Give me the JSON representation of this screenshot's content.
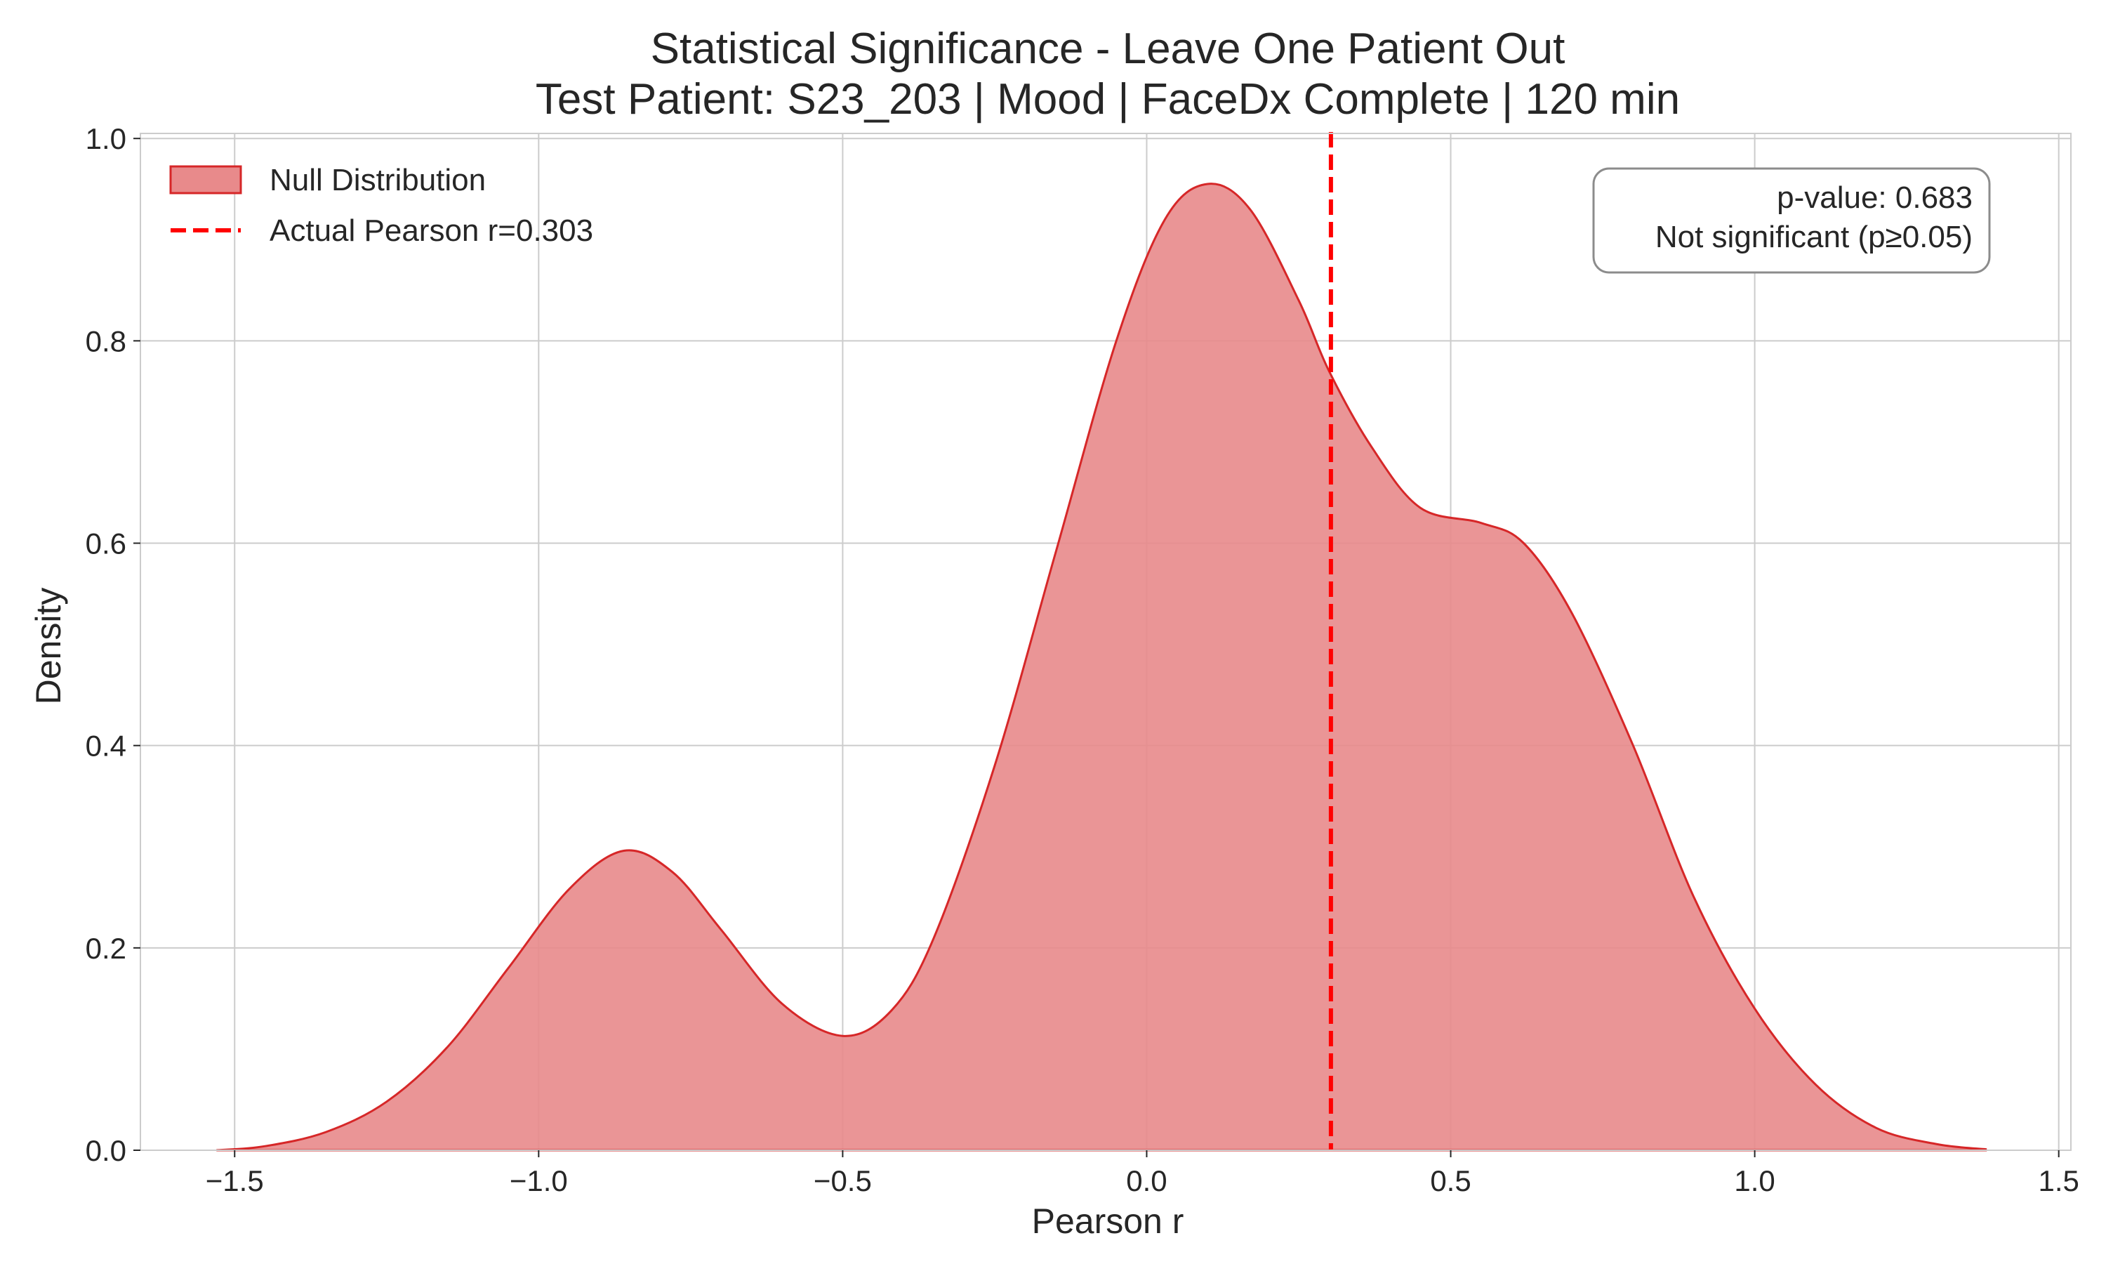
{
  "chart_data": {
    "type": "area",
    "title": "Statistical Significance - Leave One Patient Out",
    "subtitle": "Test Patient: S23_203 | Mood | FaceDx Complete | 120 min",
    "xlabel": "Pearson r",
    "ylabel": "Density",
    "xlim": [
      -1.655,
      1.52
    ],
    "ylim": [
      0.0,
      1.005
    ],
    "x_ticks": [
      -1.5,
      -1.0,
      -0.5,
      0.0,
      0.5,
      1.0,
      1.5
    ],
    "x_tick_labels": [
      "−1.5",
      "−1.0",
      "−0.5",
      "0.0",
      "0.5",
      "1.0",
      "1.5"
    ],
    "y_ticks": [
      0.0,
      0.2,
      0.4,
      0.6,
      0.8,
      1.0
    ],
    "y_tick_labels": [
      "0.0",
      "0.2",
      "0.4",
      "0.6",
      "0.8",
      "1.0"
    ],
    "grid": true,
    "legend_position": "top-left",
    "series": [
      {
        "name": "Null Distribution",
        "kind": "kde-fill",
        "fill_color": "#e88a8b",
        "edge_color": "#d62728",
        "points": [
          [
            -1.53,
            0.0
          ],
          [
            -1.45,
            0.004
          ],
          [
            -1.35,
            0.018
          ],
          [
            -1.25,
            0.048
          ],
          [
            -1.15,
            0.102
          ],
          [
            -1.05,
            0.18
          ],
          [
            -0.95,
            0.258
          ],
          [
            -0.86,
            0.296
          ],
          [
            -0.78,
            0.275
          ],
          [
            -0.7,
            0.218
          ],
          [
            -0.6,
            0.145
          ],
          [
            -0.5,
            0.113
          ],
          [
            -0.42,
            0.138
          ],
          [
            -0.35,
            0.21
          ],
          [
            -0.25,
            0.38
          ],
          [
            -0.15,
            0.59
          ],
          [
            -0.05,
            0.8
          ],
          [
            0.03,
            0.92
          ],
          [
            0.1,
            0.955
          ],
          [
            0.17,
            0.93
          ],
          [
            0.25,
            0.84
          ],
          [
            0.3,
            0.77
          ],
          [
            0.37,
            0.695
          ],
          [
            0.45,
            0.635
          ],
          [
            0.55,
            0.62
          ],
          [
            0.62,
            0.6
          ],
          [
            0.7,
            0.53
          ],
          [
            0.8,
            0.4
          ],
          [
            0.9,
            0.25
          ],
          [
            1.0,
            0.14
          ],
          [
            1.1,
            0.065
          ],
          [
            1.2,
            0.022
          ],
          [
            1.3,
            0.006
          ],
          [
            1.38,
            0.001
          ]
        ]
      },
      {
        "name": "Actual Pearson r=0.303",
        "kind": "vline",
        "x": 0.303,
        "color": "#ff0000",
        "style": "dashed"
      }
    ],
    "annotation": {
      "line1": "p-value: 0.683",
      "line2": "Not significant (p≥0.05)",
      "position": "top-right"
    }
  }
}
